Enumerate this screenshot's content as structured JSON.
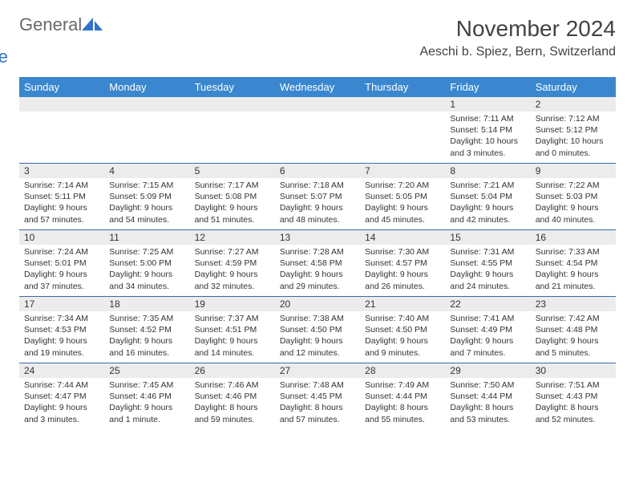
{
  "brand": {
    "word1": "General",
    "word2": "Blue",
    "word1_color": "#6a6a6a",
    "word2_color": "#2e75c8",
    "icon_fill": "#2e75c8"
  },
  "title": "November 2024",
  "location": "Aeschi b. Spiez, Bern, Switzerland",
  "header_bg": "#3a87cf",
  "header_text_color": "#ffffff",
  "daynum_bg": "#ececec",
  "rule_color": "#3a6aa8",
  "text_color": "#333333",
  "title_color": "#424242",
  "day_names": [
    "Sunday",
    "Monday",
    "Tuesday",
    "Wednesday",
    "Thursday",
    "Friday",
    "Saturday"
  ],
  "weeks": [
    [
      {
        "n": "",
        "sunrise": "",
        "sunset": "",
        "daylight": ""
      },
      {
        "n": "",
        "sunrise": "",
        "sunset": "",
        "daylight": ""
      },
      {
        "n": "",
        "sunrise": "",
        "sunset": "",
        "daylight": ""
      },
      {
        "n": "",
        "sunrise": "",
        "sunset": "",
        "daylight": ""
      },
      {
        "n": "",
        "sunrise": "",
        "sunset": "",
        "daylight": ""
      },
      {
        "n": "1",
        "sunrise": "Sunrise: 7:11 AM",
        "sunset": "Sunset: 5:14 PM",
        "daylight": "Daylight: 10 hours and 3 minutes."
      },
      {
        "n": "2",
        "sunrise": "Sunrise: 7:12 AM",
        "sunset": "Sunset: 5:12 PM",
        "daylight": "Daylight: 10 hours and 0 minutes."
      }
    ],
    [
      {
        "n": "3",
        "sunrise": "Sunrise: 7:14 AM",
        "sunset": "Sunset: 5:11 PM",
        "daylight": "Daylight: 9 hours and 57 minutes."
      },
      {
        "n": "4",
        "sunrise": "Sunrise: 7:15 AM",
        "sunset": "Sunset: 5:09 PM",
        "daylight": "Daylight: 9 hours and 54 minutes."
      },
      {
        "n": "5",
        "sunrise": "Sunrise: 7:17 AM",
        "sunset": "Sunset: 5:08 PM",
        "daylight": "Daylight: 9 hours and 51 minutes."
      },
      {
        "n": "6",
        "sunrise": "Sunrise: 7:18 AM",
        "sunset": "Sunset: 5:07 PM",
        "daylight": "Daylight: 9 hours and 48 minutes."
      },
      {
        "n": "7",
        "sunrise": "Sunrise: 7:20 AM",
        "sunset": "Sunset: 5:05 PM",
        "daylight": "Daylight: 9 hours and 45 minutes."
      },
      {
        "n": "8",
        "sunrise": "Sunrise: 7:21 AM",
        "sunset": "Sunset: 5:04 PM",
        "daylight": "Daylight: 9 hours and 42 minutes."
      },
      {
        "n": "9",
        "sunrise": "Sunrise: 7:22 AM",
        "sunset": "Sunset: 5:03 PM",
        "daylight": "Daylight: 9 hours and 40 minutes."
      }
    ],
    [
      {
        "n": "10",
        "sunrise": "Sunrise: 7:24 AM",
        "sunset": "Sunset: 5:01 PM",
        "daylight": "Daylight: 9 hours and 37 minutes."
      },
      {
        "n": "11",
        "sunrise": "Sunrise: 7:25 AM",
        "sunset": "Sunset: 5:00 PM",
        "daylight": "Daylight: 9 hours and 34 minutes."
      },
      {
        "n": "12",
        "sunrise": "Sunrise: 7:27 AM",
        "sunset": "Sunset: 4:59 PM",
        "daylight": "Daylight: 9 hours and 32 minutes."
      },
      {
        "n": "13",
        "sunrise": "Sunrise: 7:28 AM",
        "sunset": "Sunset: 4:58 PM",
        "daylight": "Daylight: 9 hours and 29 minutes."
      },
      {
        "n": "14",
        "sunrise": "Sunrise: 7:30 AM",
        "sunset": "Sunset: 4:57 PM",
        "daylight": "Daylight: 9 hours and 26 minutes."
      },
      {
        "n": "15",
        "sunrise": "Sunrise: 7:31 AM",
        "sunset": "Sunset: 4:55 PM",
        "daylight": "Daylight: 9 hours and 24 minutes."
      },
      {
        "n": "16",
        "sunrise": "Sunrise: 7:33 AM",
        "sunset": "Sunset: 4:54 PM",
        "daylight": "Daylight: 9 hours and 21 minutes."
      }
    ],
    [
      {
        "n": "17",
        "sunrise": "Sunrise: 7:34 AM",
        "sunset": "Sunset: 4:53 PM",
        "daylight": "Daylight: 9 hours and 19 minutes."
      },
      {
        "n": "18",
        "sunrise": "Sunrise: 7:35 AM",
        "sunset": "Sunset: 4:52 PM",
        "daylight": "Daylight: 9 hours and 16 minutes."
      },
      {
        "n": "19",
        "sunrise": "Sunrise: 7:37 AM",
        "sunset": "Sunset: 4:51 PM",
        "daylight": "Daylight: 9 hours and 14 minutes."
      },
      {
        "n": "20",
        "sunrise": "Sunrise: 7:38 AM",
        "sunset": "Sunset: 4:50 PM",
        "daylight": "Daylight: 9 hours and 12 minutes."
      },
      {
        "n": "21",
        "sunrise": "Sunrise: 7:40 AM",
        "sunset": "Sunset: 4:50 PM",
        "daylight": "Daylight: 9 hours and 9 minutes."
      },
      {
        "n": "22",
        "sunrise": "Sunrise: 7:41 AM",
        "sunset": "Sunset: 4:49 PM",
        "daylight": "Daylight: 9 hours and 7 minutes."
      },
      {
        "n": "23",
        "sunrise": "Sunrise: 7:42 AM",
        "sunset": "Sunset: 4:48 PM",
        "daylight": "Daylight: 9 hours and 5 minutes."
      }
    ],
    [
      {
        "n": "24",
        "sunrise": "Sunrise: 7:44 AM",
        "sunset": "Sunset: 4:47 PM",
        "daylight": "Daylight: 9 hours and 3 minutes."
      },
      {
        "n": "25",
        "sunrise": "Sunrise: 7:45 AM",
        "sunset": "Sunset: 4:46 PM",
        "daylight": "Daylight: 9 hours and 1 minute."
      },
      {
        "n": "26",
        "sunrise": "Sunrise: 7:46 AM",
        "sunset": "Sunset: 4:46 PM",
        "daylight": "Daylight: 8 hours and 59 minutes."
      },
      {
        "n": "27",
        "sunrise": "Sunrise: 7:48 AM",
        "sunset": "Sunset: 4:45 PM",
        "daylight": "Daylight: 8 hours and 57 minutes."
      },
      {
        "n": "28",
        "sunrise": "Sunrise: 7:49 AM",
        "sunset": "Sunset: 4:44 PM",
        "daylight": "Daylight: 8 hours and 55 minutes."
      },
      {
        "n": "29",
        "sunrise": "Sunrise: 7:50 AM",
        "sunset": "Sunset: 4:44 PM",
        "daylight": "Daylight: 8 hours and 53 minutes."
      },
      {
        "n": "30",
        "sunrise": "Sunrise: 7:51 AM",
        "sunset": "Sunset: 4:43 PM",
        "daylight": "Daylight: 8 hours and 52 minutes."
      }
    ]
  ]
}
